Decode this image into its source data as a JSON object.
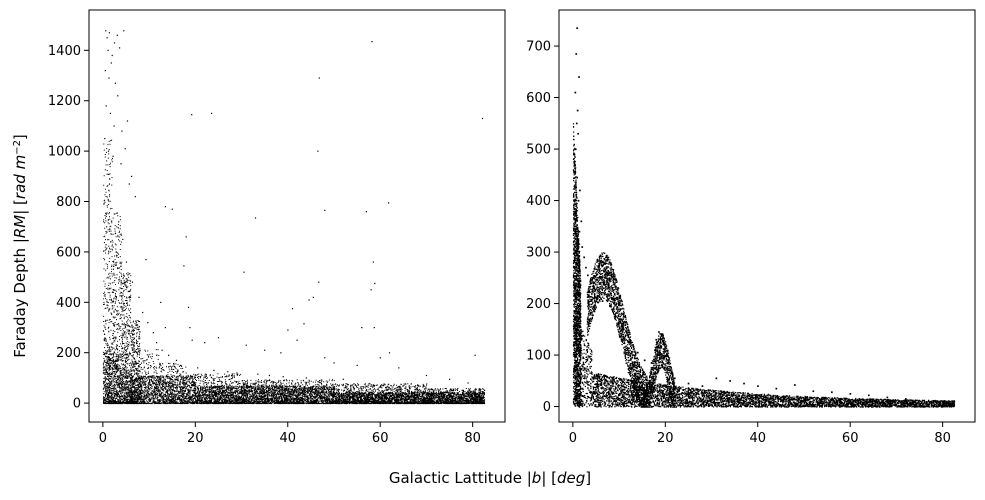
{
  "figure": {
    "supxlabel": {
      "pre": "Galactic Lattitude |",
      "var": "b",
      "mid": "| [",
      "unit": "deg",
      "post": "]"
    },
    "supylabel": {
      "pre": "Faraday Depth |",
      "var": "RM",
      "mid": "| [",
      "unit": "rad m",
      "sup": "−2",
      "post": "]"
    },
    "point_color": "#000000",
    "background": "#ffffff"
  },
  "chart_data": [
    {
      "type": "scatter",
      "panel": "left",
      "title": "",
      "xlabel": "",
      "ylabel": "",
      "xlim": [
        -3,
        87
      ],
      "ylim": [
        -75,
        1560
      ],
      "xticks": [
        0,
        20,
        40,
        60,
        80
      ],
      "yticks": [
        0,
        200,
        400,
        600,
        800,
        1000,
        1200,
        1400
      ],
      "grid": false,
      "marker_size": 1,
      "description_stats": {
        "x_range": [
          0,
          82.5
        ],
        "y_range": [
          0,
          1485
        ],
        "dense_band_max": 120,
        "peak_region_x": [
          0,
          7
        ]
      },
      "series": [
        {
          "points": [
            [
              0.6,
              1478
            ],
            [
              0.9,
              1450
            ],
            [
              1.4,
              1470
            ],
            [
              2.5,
              1430
            ],
            [
              3.1,
              1460
            ],
            [
              4.5,
              1478
            ],
            [
              1.1,
              1400
            ],
            [
              2.0,
              1380
            ],
            [
              3.6,
              1410
            ],
            [
              0.5,
              1320
            ],
            [
              1.3,
              1290
            ],
            [
              2.7,
              1270
            ],
            [
              1.8,
              1350
            ],
            [
              0.7,
              1180
            ],
            [
              1.6,
              1150
            ],
            [
              3.2,
              1220
            ],
            [
              2.4,
              1100
            ],
            [
              4.1,
              1080
            ],
            [
              0.4,
              1050
            ],
            [
              1.2,
              1000
            ],
            [
              5.3,
              1120
            ],
            [
              4.8,
              1010
            ],
            [
              3.9,
              950
            ],
            [
              2.2,
              980
            ],
            [
              6.2,
              900
            ],
            [
              5.7,
              870
            ],
            [
              7.0,
              820
            ],
            [
              19.2,
              1145
            ],
            [
              23.5,
              1150
            ],
            [
              46.8,
              1290
            ],
            [
              58.2,
              1435
            ],
            [
              82.1,
              1130
            ],
            [
              46.5,
              1000
            ],
            [
              48.0,
              765
            ],
            [
              57.0,
              760
            ],
            [
              61.8,
              795
            ],
            [
              33.0,
              735
            ],
            [
              13.5,
              780
            ],
            [
              15.0,
              770
            ],
            [
              18.0,
              660
            ],
            [
              17.5,
              545
            ],
            [
              9.3,
              570
            ],
            [
              30.5,
              520
            ],
            [
              46.7,
              480
            ],
            [
              58.5,
              560
            ],
            [
              58.8,
              475
            ],
            [
              58.0,
              450
            ],
            [
              41.0,
              375
            ],
            [
              43.5,
              315
            ],
            [
              45.5,
              420
            ],
            [
              44.6,
              410
            ],
            [
              56.0,
              300
            ],
            [
              58.7,
              300
            ],
            [
              62.0,
              200
            ],
            [
              80.5,
              190
            ],
            [
              12.5,
              400
            ],
            [
              13.5,
              300
            ],
            [
              18.5,
              380
            ],
            [
              18.8,
              300
            ],
            [
              19.3,
              250
            ],
            [
              22.0,
              240
            ],
            [
              25.0,
              260
            ],
            [
              31.0,
              230
            ],
            [
              35.0,
              210
            ],
            [
              38.5,
              200
            ],
            [
              40.0,
              290
            ],
            [
              42.0,
              250
            ],
            [
              48.0,
              180
            ],
            [
              50.0,
              160
            ],
            [
              55.0,
              150
            ],
            [
              60.0,
              180
            ],
            [
              64.0,
              140
            ],
            [
              70.0,
              110
            ],
            [
              75.0,
              95
            ],
            [
              79.0,
              80
            ],
            [
              0.8,
              700
            ],
            [
              1.7,
              640
            ],
            [
              2.9,
              600
            ],
            [
              3.4,
              720
            ],
            [
              4.3,
              650
            ],
            [
              5.1,
              560
            ],
            [
              6.4,
              480
            ],
            [
              7.8,
              420
            ],
            [
              8.6,
              360
            ],
            [
              9.7,
              320
            ],
            [
              10.9,
              280
            ],
            [
              11.6,
              240
            ],
            [
              12.8,
              210
            ],
            [
              14.2,
              190
            ],
            [
              15.9,
              170
            ],
            [
              16.8,
              150
            ],
            [
              20.5,
              140
            ],
            [
              24.0,
              130
            ],
            [
              27.0,
              125
            ],
            [
              29.0,
              120
            ],
            [
              33.5,
              115
            ],
            [
              36.0,
              110
            ],
            [
              39.0,
              105
            ],
            [
              44.0,
              100
            ],
            [
              52.0,
              95
            ]
          ],
          "dense_band": [
            {
              "x_from": 0,
              "x_to": 2,
              "y_max": 1050
            },
            {
              "x_from": 2,
              "x_to": 4,
              "y_max": 760
            },
            {
              "x_from": 4,
              "x_to": 6,
              "y_max": 520
            },
            {
              "x_from": 6,
              "x_to": 8,
              "y_max": 330
            },
            {
              "x_from": 8,
              "x_to": 12,
              "y_max": 220
            },
            {
              "x_from": 12,
              "x_to": 18,
              "y_max": 160
            },
            {
              "x_from": 18,
              "x_to": 30,
              "y_max": 120
            },
            {
              "x_from": 30,
              "x_to": 50,
              "y_max": 95
            },
            {
              "x_from": 50,
              "x_to": 70,
              "y_max": 80
            },
            {
              "x_from": 70,
              "x_to": 82.5,
              "y_max": 60
            }
          ]
        }
      ]
    },
    {
      "type": "scatter",
      "panel": "right",
      "title": "",
      "xlabel": "",
      "ylabel": "",
      "xlim": [
        -3,
        87
      ],
      "ylim": [
        -30,
        770
      ],
      "xticks": [
        0,
        20,
        40,
        60,
        80
      ],
      "yticks": [
        0,
        100,
        200,
        300,
        400,
        500,
        600,
        700
      ],
      "grid": false,
      "marker_size": 1.4,
      "description_stats": {
        "x_range": [
          0,
          82.5
        ],
        "y_range": [
          0,
          735
        ],
        "lower_band_max": 50
      },
      "series": [
        {
          "points": [
            [
              0.9,
              735
            ],
            [
              0.7,
              685
            ],
            [
              1.3,
              640
            ],
            [
              0.5,
              610
            ],
            [
              1.0,
              575
            ],
            [
              0.8,
              550
            ],
            [
              1.1,
              530
            ],
            [
              0.6,
              500
            ],
            [
              0.4,
              470
            ],
            [
              0.9,
              445
            ],
            [
              1.5,
              420
            ],
            [
              1.2,
              400
            ],
            [
              0.7,
              380
            ],
            [
              1.8,
              360
            ],
            [
              1.4,
              340
            ],
            [
              2.0,
              310
            ],
            [
              2.4,
              290
            ],
            [
              2.8,
              270
            ],
            [
              3.2,
              255
            ],
            [
              3.8,
              245
            ],
            [
              4.6,
              230
            ],
            [
              5.5,
              215
            ],
            [
              6.4,
              205
            ],
            [
              7.2,
              260
            ],
            [
              7.0,
              250
            ],
            [
              6.6,
              240
            ],
            [
              8.0,
              195
            ],
            [
              9.0,
              175
            ],
            [
              10.0,
              165
            ],
            [
              11.0,
              150
            ],
            [
              12.0,
              135
            ],
            [
              13.0,
              120
            ],
            [
              14.0,
              105
            ],
            [
              15.5,
              90
            ],
            [
              17.0,
              85
            ],
            [
              18.0,
              130
            ],
            [
              18.6,
              145
            ],
            [
              19.2,
              140
            ],
            [
              19.8,
              120
            ],
            [
              20.4,
              100
            ],
            [
              21.0,
              70
            ],
            [
              22.0,
              55
            ],
            [
              25.0,
              45
            ],
            [
              28.0,
              40
            ],
            [
              31.0,
              55
            ],
            [
              34.0,
              50
            ],
            [
              37.0,
              45
            ],
            [
              40.0,
              40
            ],
            [
              44.0,
              35
            ],
            [
              48.0,
              42
            ],
            [
              52.0,
              30
            ],
            [
              56.0,
              28
            ],
            [
              60.0,
              25
            ],
            [
              64.0,
              22
            ],
            [
              68.0,
              18
            ],
            [
              72.0,
              15
            ],
            [
              76.0,
              12
            ],
            [
              80.0,
              10
            ],
            [
              82.3,
              8
            ]
          ],
          "bands": [
            {
              "name": "main",
              "x_from": 0,
              "x_to": 82.5,
              "y_low": 0,
              "y_high_at_start": 420,
              "y_high_at_end": 8
            },
            {
              "name": "arc1",
              "x_from": 3,
              "x_to": 16,
              "y_low": 0,
              "peak": 260
            },
            {
              "name": "arc2",
              "x_from": 15,
              "x_to": 22,
              "y_low": 20,
              "peak": 145
            }
          ]
        }
      ]
    }
  ]
}
